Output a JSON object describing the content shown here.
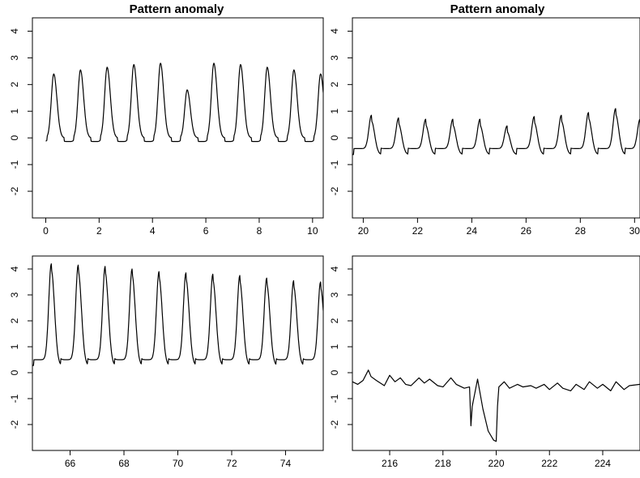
{
  "chart_data": [
    {
      "type": "line",
      "title": "Pattern anomaly",
      "xlabel": "",
      "ylabel": "",
      "xlim": [
        -0.5,
        10.4
      ],
      "ylim": [
        -3,
        4.5
      ],
      "xticks": [
        0,
        2,
        4,
        6,
        8,
        10
      ],
      "yticks": [
        -2,
        -1,
        0,
        1,
        2,
        3,
        4
      ],
      "grid": false,
      "line_color": "#000000",
      "shape": {
        "start": 0,
        "period": 1,
        "base": 0,
        "trough": -0.15,
        "rise": 0.3
      },
      "peaks": [
        [
          0.3,
          2.4
        ],
        [
          1.3,
          2.55
        ],
        [
          2.3,
          2.65
        ],
        [
          3.3,
          2.75
        ],
        [
          4.3,
          2.8
        ],
        [
          5.3,
          1.8
        ],
        [
          6.3,
          2.8
        ],
        [
          7.3,
          2.75
        ],
        [
          8.3,
          2.65
        ],
        [
          9.3,
          2.55
        ],
        [
          10.3,
          2.4
        ]
      ]
    },
    {
      "type": "line",
      "title": "Pattern anomaly",
      "xlabel": "",
      "ylabel": "",
      "xlim": [
        19.6,
        30.2
      ],
      "ylim": [
        -3,
        4.5
      ],
      "xticks": [
        20,
        22,
        24,
        26,
        28,
        30
      ],
      "yticks": [
        -2,
        -1,
        0,
        1,
        2,
        3,
        4
      ],
      "grid": false,
      "line_color": "#000000",
      "shape": {
        "start": 19.6,
        "period": 1,
        "base": -0.4,
        "trough": -0.65,
        "rise": 0.28
      },
      "peaks": [
        [
          20.3,
          0.85
        ],
        [
          21.3,
          0.75
        ],
        [
          22.3,
          0.7
        ],
        [
          23.3,
          0.7
        ],
        [
          24.3,
          0.7
        ],
        [
          25.3,
          0.45
        ],
        [
          26.3,
          0.8
        ],
        [
          27.3,
          0.85
        ],
        [
          28.3,
          0.95
        ],
        [
          29.3,
          1.1
        ],
        [
          30.2,
          0.7
        ]
      ]
    },
    {
      "type": "line",
      "title": "",
      "xlabel": "",
      "ylabel": "",
      "xlim": [
        64.6,
        75.4
      ],
      "ylim": [
        -3,
        4.5
      ],
      "xticks": [
        66,
        68,
        70,
        72,
        74
      ],
      "yticks": [
        -2,
        -1,
        0,
        1,
        2,
        3,
        4
      ],
      "grid": false,
      "line_color": "#000000",
      "shape": {
        "start": 64.6,
        "period": 1,
        "base": 0.5,
        "trough": 0.25,
        "rise": 0.3
      },
      "peaks": [
        [
          65.3,
          4.2
        ],
        [
          66.3,
          4.15
        ],
        [
          67.3,
          4.1
        ],
        [
          68.3,
          4.0
        ],
        [
          69.3,
          3.9
        ],
        [
          70.3,
          3.85
        ],
        [
          71.3,
          3.8
        ],
        [
          72.3,
          3.75
        ],
        [
          73.3,
          3.65
        ],
        [
          74.3,
          3.55
        ],
        [
          75.3,
          3.5
        ]
      ]
    },
    {
      "type": "line",
      "title": "",
      "xlabel": "",
      "ylabel": "",
      "xlim": [
        214.6,
        225.4
      ],
      "ylim": [
        -3,
        4.5
      ],
      "xticks": [
        216,
        218,
        220,
        222,
        224
      ],
      "yticks": [
        -2,
        -1,
        0,
        1,
        2,
        3,
        4
      ],
      "grid": false,
      "line_color": "#000000",
      "x": [
        214.6,
        214.8,
        215.0,
        215.2,
        215.3,
        215.5,
        215.8,
        216.0,
        216.2,
        216.4,
        216.6,
        216.8,
        217.1,
        217.3,
        217.5,
        217.8,
        218.0,
        218.3,
        218.5,
        218.8,
        219.0,
        219.05,
        219.1,
        219.3,
        219.5,
        219.7,
        219.9,
        220.0,
        220.05,
        220.1,
        220.3,
        220.5,
        220.8,
        221.0,
        221.3,
        221.5,
        221.8,
        222.0,
        222.3,
        222.5,
        222.8,
        223.0,
        223.3,
        223.5,
        223.8,
        224.0,
        224.3,
        224.5,
        224.8,
        225.0,
        225.4
      ],
      "y": [
        -0.35,
        -0.45,
        -0.3,
        0.1,
        -0.15,
        -0.3,
        -0.5,
        -0.1,
        -0.35,
        -0.2,
        -0.45,
        -0.5,
        -0.2,
        -0.4,
        -0.25,
        -0.5,
        -0.55,
        -0.2,
        -0.45,
        -0.6,
        -0.55,
        -2.05,
        -1.3,
        -0.25,
        -1.4,
        -2.25,
        -2.6,
        -2.65,
        -1.3,
        -0.55,
        -0.35,
        -0.6,
        -0.45,
        -0.55,
        -0.5,
        -0.6,
        -0.45,
        -0.65,
        -0.4,
        -0.6,
        -0.7,
        -0.45,
        -0.65,
        -0.35,
        -0.6,
        -0.45,
        -0.7,
        -0.35,
        -0.65,
        -0.5,
        -0.45
      ]
    }
  ]
}
